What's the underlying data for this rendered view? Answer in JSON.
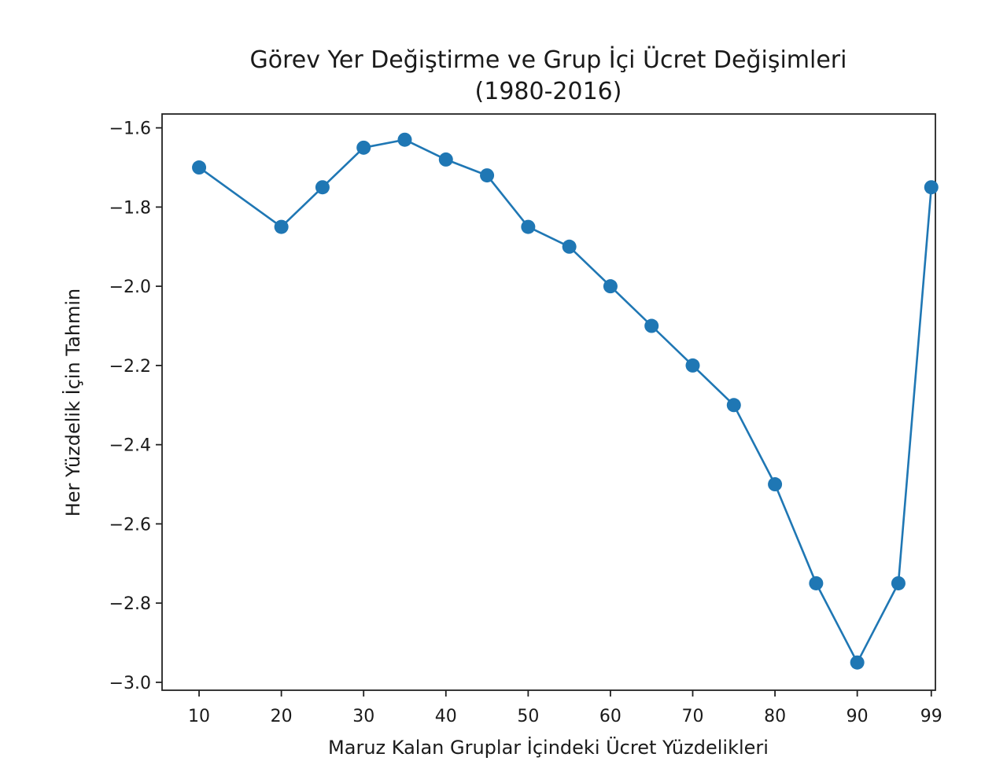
{
  "chart_data": {
    "type": "line",
    "title": "Görev Yer Değiştirme ve Grup İçi Ücret Değişimleri",
    "subtitle": "(1980-2016)",
    "xlabel": "Maruz Kalan Gruplar İçindeki Ücret Yüzdelikleri",
    "ylabel": "Her Yüzdelik İçin Tahmin",
    "xlim": [
      5.5,
      99.5
    ],
    "ylim": [
      -3.02,
      -1.565
    ],
    "x_ticks": [
      10,
      20,
      30,
      40,
      50,
      60,
      70,
      80,
      90,
      99
    ],
    "y_ticks": [
      -1.6,
      -1.8,
      -2.0,
      -2.2,
      -2.4,
      -2.6,
      -2.8,
      -3.0
    ],
    "y_tick_labels": [
      "−1.6",
      "−1.8",
      "−2.0",
      "−2.2",
      "−2.4",
      "−2.6",
      "−2.8",
      "−3.0"
    ],
    "grid": false,
    "series": [
      {
        "color": "#1f77b4",
        "marker": "circle",
        "points": [
          {
            "x": 10,
            "y": -1.7
          },
          {
            "x": 20,
            "y": -1.85
          },
          {
            "x": 25,
            "y": -1.75
          },
          {
            "x": 30,
            "y": -1.65
          },
          {
            "x": 35,
            "y": -1.63
          },
          {
            "x": 40,
            "y": -1.68
          },
          {
            "x": 45,
            "y": -1.72
          },
          {
            "x": 50,
            "y": -1.85
          },
          {
            "x": 55,
            "y": -1.9
          },
          {
            "x": 60,
            "y": -2.0
          },
          {
            "x": 65,
            "y": -2.1
          },
          {
            "x": 70,
            "y": -2.2
          },
          {
            "x": 75,
            "y": -2.3
          },
          {
            "x": 80,
            "y": -2.5
          },
          {
            "x": 85,
            "y": -2.75
          },
          {
            "x": 90,
            "y": -2.95
          },
          {
            "x": 95,
            "y": -2.75
          },
          {
            "x": 99,
            "y": -1.75
          }
        ]
      }
    ]
  }
}
